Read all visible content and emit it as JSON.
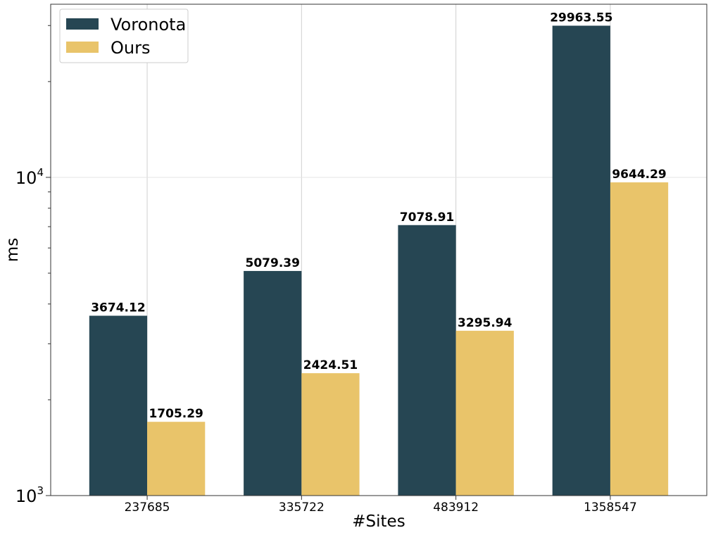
{
  "chart_data": {
    "type": "bar",
    "categories": [
      "237685",
      "335722",
      "483912",
      "1358547"
    ],
    "series": [
      {
        "name": "Voronota",
        "values": [
          3674.12,
          5079.39,
          7078.91,
          29963.55
        ],
        "color": "#264653"
      },
      {
        "name": "Ours",
        "values": [
          1705.29,
          2424.51,
          3295.94,
          9644.29
        ],
        "color": "#e9c46a"
      }
    ],
    "value_labels": [
      [
        "3674.12",
        "5079.39",
        "7078.91",
        "29963.55"
      ],
      [
        "1705.29",
        "2424.51",
        "3295.94",
        "9644.29"
      ]
    ],
    "xlabel": "#Sites",
    "ylabel": "ms",
    "yscale": "log",
    "ylim": [
      1000,
      35000
    ],
    "yticks": [
      {
        "value": 1000,
        "base": "10",
        "exp": "3"
      },
      {
        "value": 10000,
        "base": "10",
        "exp": "4"
      }
    ],
    "grid": true,
    "legend_position": "top-left"
  }
}
